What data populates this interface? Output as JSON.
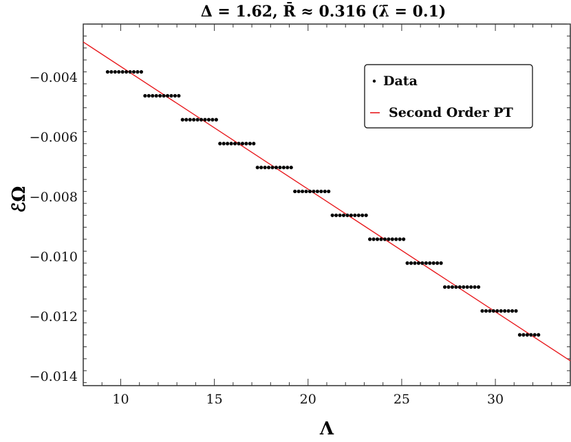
{
  "chart_data": {
    "type": "scatter",
    "title": "Δ = 1.62, R̄ ≈ 0.316 (λ̄ = 0.1)",
    "xlabel": "Λ",
    "ylabel": "ℰΩ",
    "xlim": [
      8,
      34
    ],
    "ylim": [
      -0.0143,
      -0.0022
    ],
    "x_ticks": [
      10,
      15,
      20,
      25,
      30
    ],
    "x_tick_labels": [
      "10",
      "15",
      "20",
      "25",
      "30"
    ],
    "y_ticks": [
      -0.004,
      -0.006,
      -0.008,
      -0.01,
      -0.012,
      -0.014
    ],
    "y_tick_labels": [
      "−0.004",
      "−0.006",
      "−0.008",
      "−0.010",
      "−0.012",
      "−0.014"
    ],
    "grid": false,
    "legend": {
      "position": "top-right",
      "entries": [
        "Data",
        "Second Order PT"
      ]
    },
    "series": [
      {
        "name": "Data",
        "kind": "points",
        "color": "#000000",
        "steps": [
          {
            "x_from": 9.3,
            "x_to": 11.1,
            "y": -0.0038
          },
          {
            "x_from": 11.3,
            "x_to": 13.1,
            "y": -0.0046
          },
          {
            "x_from": 13.3,
            "x_to": 15.1,
            "y": -0.0054
          },
          {
            "x_from": 15.3,
            "x_to": 17.1,
            "y": -0.0062
          },
          {
            "x_from": 17.3,
            "x_to": 19.1,
            "y": -0.007
          },
          {
            "x_from": 19.3,
            "x_to": 21.1,
            "y": -0.0078
          },
          {
            "x_from": 21.3,
            "x_to": 23.1,
            "y": -0.0086
          },
          {
            "x_from": 23.3,
            "x_to": 25.1,
            "y": -0.0094
          },
          {
            "x_from": 25.3,
            "x_to": 27.1,
            "y": -0.0102
          },
          {
            "x_from": 27.3,
            "x_to": 29.1,
            "y": -0.011
          },
          {
            "x_from": 29.3,
            "x_to": 31.1,
            "y": -0.0118
          },
          {
            "x_from": 31.3,
            "x_to": 32.3,
            "y": -0.0126
          }
        ],
        "x_spacing": 0.2
      },
      {
        "name": "Second Order PT",
        "kind": "line",
        "color": "#e8191d",
        "points": [
          [
            8,
            -0.0028
          ],
          [
            34,
            -0.01347
          ]
        ]
      }
    ]
  }
}
